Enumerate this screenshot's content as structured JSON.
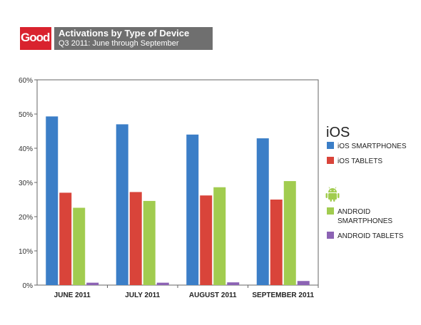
{
  "brand": {
    "logo_text": "Good"
  },
  "header": {
    "title": "Activations by Type of Device",
    "subtitle": "Q3 2011: June through September"
  },
  "legend": {
    "ios_heading": "iOS",
    "items": [
      {
        "label": "iOS SMARTPHONES",
        "color": "#3b7ec7"
      },
      {
        "label": "iOS TABLETS",
        "color": "#d9443a"
      },
      {
        "label": "ANDROID SMARTPHONES",
        "color": "#a1cc4f"
      },
      {
        "label": "ANDROID TABLETS",
        "color": "#8c63b4"
      }
    ],
    "android_icon": "android-icon"
  },
  "chart_data": {
    "type": "bar",
    "title": "Activations by Type of Device",
    "subtitle": "Q3 2011: June through September",
    "categories": [
      "JUNE 2011",
      "JULY 2011",
      "AUGUST 2011",
      "SEPTEMBER 2011"
    ],
    "series": [
      {
        "name": "iOS SMARTPHONES",
        "color": "#3b7ec7",
        "values": [
          49.3,
          47.0,
          44.0,
          42.9
        ]
      },
      {
        "name": "iOS TABLETS",
        "color": "#d9443a",
        "values": [
          27.0,
          27.2,
          26.2,
          25.0
        ]
      },
      {
        "name": "ANDROID SMARTPHONES",
        "color": "#a1cc4f",
        "values": [
          22.6,
          24.6,
          28.6,
          30.4
        ]
      },
      {
        "name": "ANDROID TABLETS",
        "color": "#8c63b4",
        "values": [
          0.7,
          0.7,
          0.8,
          1.2
        ]
      }
    ],
    "yticks": [
      "0%",
      "10%",
      "20%",
      "30%",
      "40%",
      "50%",
      "60%"
    ],
    "ylim": [
      0,
      60
    ],
    "grid": false,
    "legend_position": "right"
  }
}
